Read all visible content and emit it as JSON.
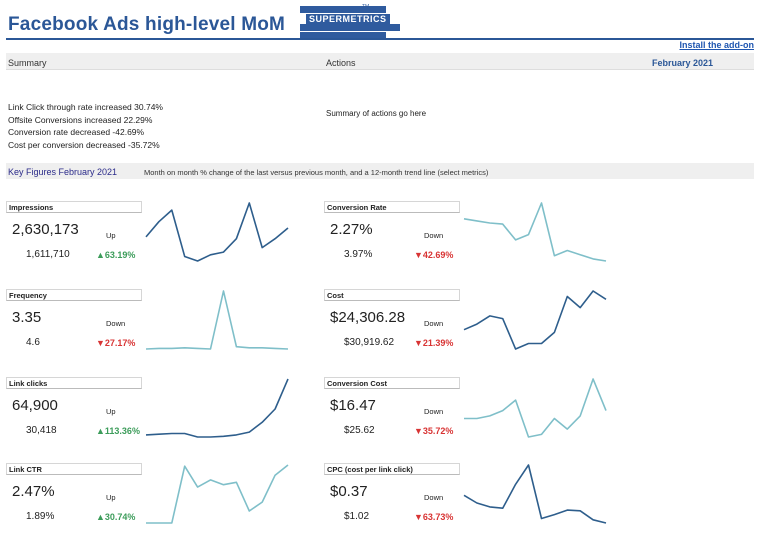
{
  "header": {
    "title": "Facebook Ads high-level MoM",
    "logo_text": "SUPERMETRICS",
    "logo_tm": "TM",
    "install_link": "Install the add-on",
    "logo_color": "#2f5b9e"
  },
  "summary_section": {
    "summary_label": "Summary",
    "actions_label": "Actions",
    "month": "February 2021",
    "lines": [
      "Link Click through rate increased 30.74%",
      "Offsite Conversions increased 22.29%",
      "Conversion rate decreased -42.69%",
      "Cost per conversion decreased -35.72%"
    ],
    "actions_text": "Summary of actions go here"
  },
  "key_figures": {
    "title": "Key Figures February 2021",
    "description": "Month on month % change of the last versus previous month, and a 12-month trend line (select metrics)"
  },
  "colors": {
    "dark_line": "#2e5e8c",
    "light_line": "#7fbfc9",
    "up": "#3c9c5a",
    "down": "#d83434"
  },
  "metrics": [
    {
      "name": "Impressions",
      "current": "2,630,173",
      "direction": "Up",
      "previous": "1,611,710",
      "change": "▲63.19%",
      "trend": "up",
      "line": "dark",
      "spark": [
        0.72,
        0.89,
        1.02,
        0.5,
        0.45,
        0.52,
        0.55,
        0.7,
        1.1,
        0.6,
        0.7,
        0.82
      ]
    },
    {
      "name": "Conversion Rate",
      "current": "2.27%",
      "direction": "Down",
      "previous": "3.97%",
      "change": "▼42.69%",
      "trend": "down",
      "line": "light",
      "spark": [
        0.4,
        0.38,
        0.36,
        0.35,
        0.2,
        0.25,
        0.55,
        0.05,
        0.1,
        0.06,
        0.02,
        0.0
      ]
    },
    {
      "name": "Frequency",
      "current": "3.35",
      "direction": "Down",
      "previous": "4.6",
      "change": "▼27.17%",
      "trend": "down",
      "line": "light",
      "spark": [
        0.0,
        0.01,
        0.01,
        0.02,
        0.01,
        0.0,
        0.99,
        0.04,
        0.02,
        0.02,
        0.01,
        0.0
      ]
    },
    {
      "name": "Cost",
      "current": "$24,306.28",
      "direction": "Down",
      "previous": "$30,919.62",
      "change": "▼21.39%",
      "trend": "down",
      "line": "dark",
      "spark": [
        2.4,
        2.6,
        2.9,
        2.8,
        1.7,
        1.9,
        1.9,
        2.3,
        3.6,
        3.2,
        3.8,
        3.5
      ]
    },
    {
      "name": "Link clicks",
      "current": "64,900",
      "direction": "Up",
      "previous": "30,418",
      "change": "▲113.36%",
      "trend": "up",
      "line": "dark",
      "spark": [
        10,
        11,
        12,
        12,
        7,
        7,
        8,
        10,
        14,
        28,
        47,
        90
      ]
    },
    {
      "name": "Conversion Cost",
      "current": "$16.47",
      "direction": "Down",
      "previous": "$25.62",
      "change": "▼35.72%",
      "trend": "down",
      "line": "light",
      "spark": [
        9,
        9,
        10,
        12,
        16,
        2,
        3,
        9,
        5,
        10,
        24,
        12
      ]
    },
    {
      "name": "Link CTR",
      "current": "2.47%",
      "direction": "Up",
      "previous": "1.89%",
      "change": "▲30.74%",
      "trend": "up",
      "line": "light",
      "spark": [
        0.0,
        0.0,
        0.0,
        0.95,
        0.6,
        0.72,
        0.64,
        0.68,
        0.2,
        0.35,
        0.8,
        0.97
      ]
    },
    {
      "name": "CPC (cost per link click)",
      "current": "$0.37",
      "direction": "Down",
      "previous": "$1.02",
      "change": "▼63.73%",
      "trend": "down",
      "line": "dark",
      "spark": [
        0.48,
        0.36,
        0.3,
        0.28,
        0.65,
        0.95,
        0.12,
        0.18,
        0.25,
        0.24,
        0.1,
        0.05
      ]
    }
  ]
}
